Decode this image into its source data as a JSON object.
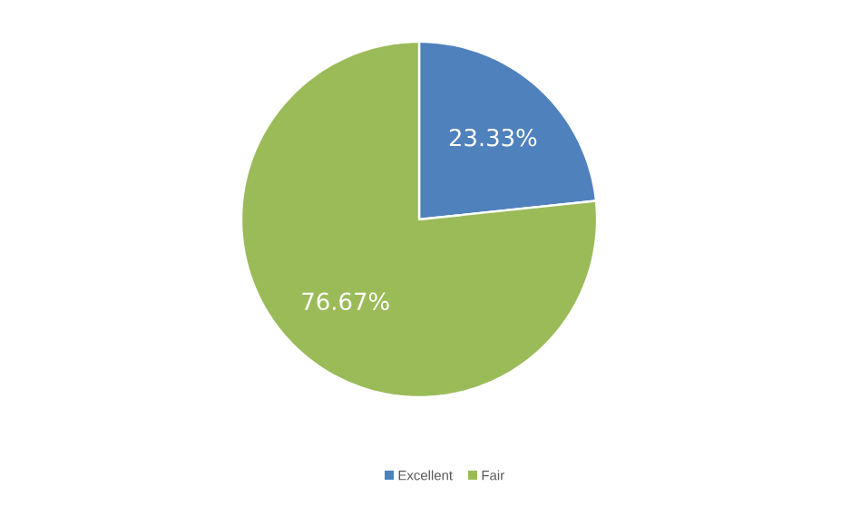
{
  "chart_data": {
    "type": "pie",
    "categories": [
      "Excellent",
      "Fair"
    ],
    "values": [
      23.33,
      76.67
    ],
    "value_labels": [
      "23.33%",
      "76.67%"
    ],
    "colors": [
      "#4f81bd",
      "#9bbb59"
    ],
    "legend": "bottom"
  }
}
